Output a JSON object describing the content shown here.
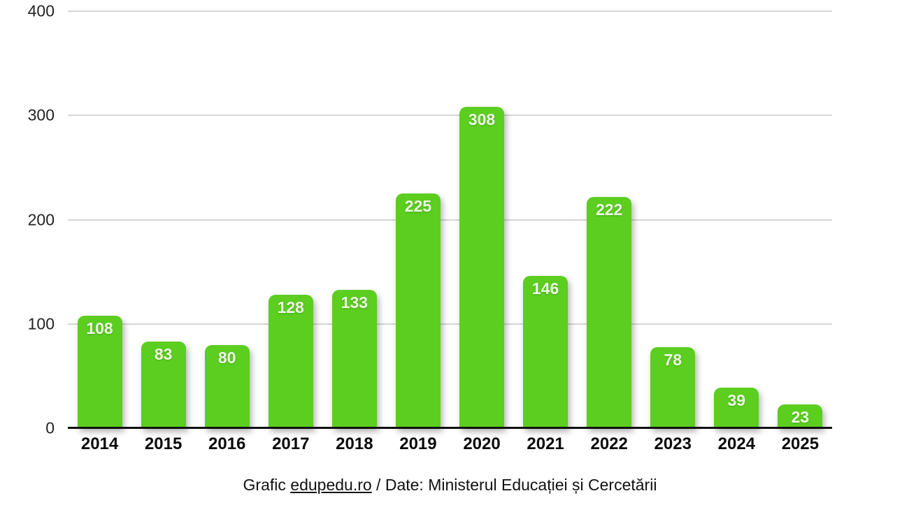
{
  "chart_data": {
    "type": "bar",
    "categories": [
      "2014",
      "2015",
      "2016",
      "2017",
      "2018",
      "2019",
      "2020",
      "2021",
      "2022",
      "2023",
      "2024",
      "2025"
    ],
    "values": [
      108,
      83,
      80,
      128,
      133,
      225,
      308,
      146,
      222,
      78,
      39,
      23
    ],
    "title": "",
    "xlabel": "",
    "ylabel": "",
    "ylim": [
      0,
      400
    ],
    "yticks": [
      "400",
      "300",
      "200",
      "100",
      "0"
    ],
    "grid": true,
    "legend": "none",
    "bar_color": "#5bce20",
    "value_label_color": "#eefae4",
    "gridline_color": "#d6d6d6",
    "baseline_color": "#111111"
  },
  "caption": {
    "prefix": "Grafic ",
    "link": "edupedu.ro",
    "suffix": " / Date: Ministerul Educației și Cercetării"
  }
}
